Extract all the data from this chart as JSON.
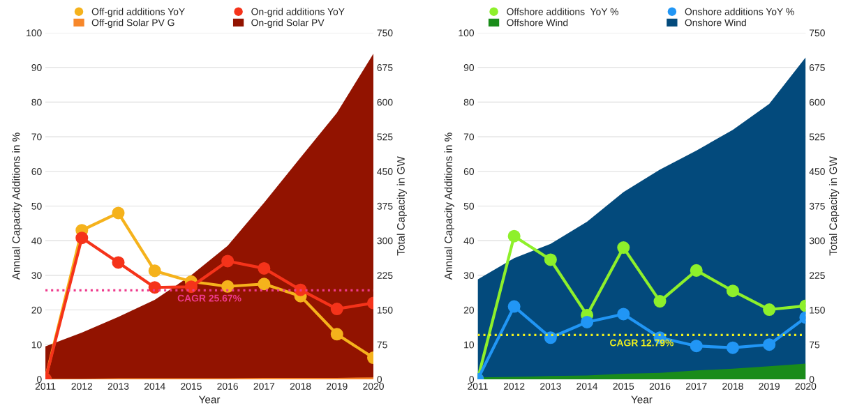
{
  "chart_data": [
    {
      "type": "line",
      "xlabel": "Year",
      "ylabel": "Annual Capacity Additions in %",
      "y2label": "Total Capacity in GW",
      "categories": [
        "2011",
        "2012",
        "2013",
        "2014",
        "2015",
        "2016",
        "2017",
        "2018",
        "2019",
        "2020"
      ],
      "series": [
        {
          "name": "Off-grid Solar PV G",
          "type": "area",
          "axis": "y2",
          "color": "#f7872a",
          "values": [
            1,
            1,
            2,
            2,
            2,
            2,
            3,
            3,
            3,
            4
          ]
        },
        {
          "name": "On-grid Solar PV",
          "type": "area",
          "axis": "y2",
          "color": "#921300",
          "values": [
            71,
            101,
            135,
            172,
            225,
            289,
            382,
            480,
            577,
            705
          ]
        },
        {
          "name": "Off-grid additions YoY",
          "marker": "circle",
          "color": "#f5b21c",
          "values": [
            0,
            43,
            48,
            31.3,
            28.2,
            26.8,
            27.5,
            24,
            13,
            6.2
          ]
        },
        {
          "name": "On-grid additions YoY",
          "marker": "circle",
          "color": "#f5331a",
          "values": [
            0,
            40.8,
            33.7,
            26.5,
            26.7,
            34.1,
            32,
            25.8,
            20.3,
            22
          ]
        }
      ],
      "ylim": [
        0,
        100
      ],
      "yticks": [
        0,
        10,
        20,
        30,
        40,
        50,
        60,
        70,
        80,
        90,
        100
      ],
      "y2lim": [
        0,
        750
      ],
      "y2ticks": [
        0,
        75,
        150,
        225,
        300,
        375,
        450,
        525,
        600,
        675,
        750
      ],
      "ref_lines": [
        {
          "axis": "y",
          "value": 25.67,
          "label": "CAGR 25.67%",
          "color": "#ee3a8c",
          "line_style": "dotted"
        }
      ],
      "grid": "y",
      "legend": "top"
    },
    {
      "type": "line",
      "xlabel": "Year",
      "ylabel": "Annual Capacity Additions in %",
      "y2label": "Total Capacity in GW",
      "categories": [
        "2011",
        "2012",
        "2013",
        "2014",
        "2015",
        "2016",
        "2017",
        "2018",
        "2019",
        "2020"
      ],
      "series": [
        {
          "name": "Offshore Wind",
          "type": "area",
          "axis": "y2",
          "color": "#1a8c1a",
          "values": [
            4,
            5,
            7,
            8,
            12,
            14,
            19,
            23,
            28,
            34
          ]
        },
        {
          "name": "Onshore Wind",
          "type": "area",
          "axis": "y2",
          "color": "#034a7c",
          "values": [
            216,
            262,
            293,
            341,
            405,
            454,
            495,
            540,
            596,
            697
          ]
        },
        {
          "name": "Offshore additions  YoY %",
          "marker": "circle",
          "color": "#8ef02b",
          "values": [
            0,
            41.3,
            34.5,
            18.5,
            38,
            22.5,
            31.4,
            25.5,
            20.1,
            21.2
          ]
        },
        {
          "name": "Onshore additions YoY %",
          "marker": "circle",
          "color": "#2196f5",
          "values": [
            0,
            21,
            12,
            16.5,
            18.8,
            12,
            9.6,
            9.1,
            10,
            17.8
          ]
        }
      ],
      "ylim": [
        0,
        100
      ],
      "yticks": [
        0,
        10,
        20,
        30,
        40,
        50,
        60,
        70,
        80,
        90,
        100
      ],
      "y2lim": [
        0,
        750
      ],
      "y2ticks": [
        0,
        75,
        150,
        225,
        300,
        375,
        450,
        525,
        600,
        675,
        750
      ],
      "ref_lines": [
        {
          "axis": "y",
          "value": 12.79,
          "label": "CAGR 12.79%",
          "color": "#f0f01e",
          "line_style": "dotted"
        }
      ],
      "grid": "y",
      "legend": "top"
    }
  ]
}
